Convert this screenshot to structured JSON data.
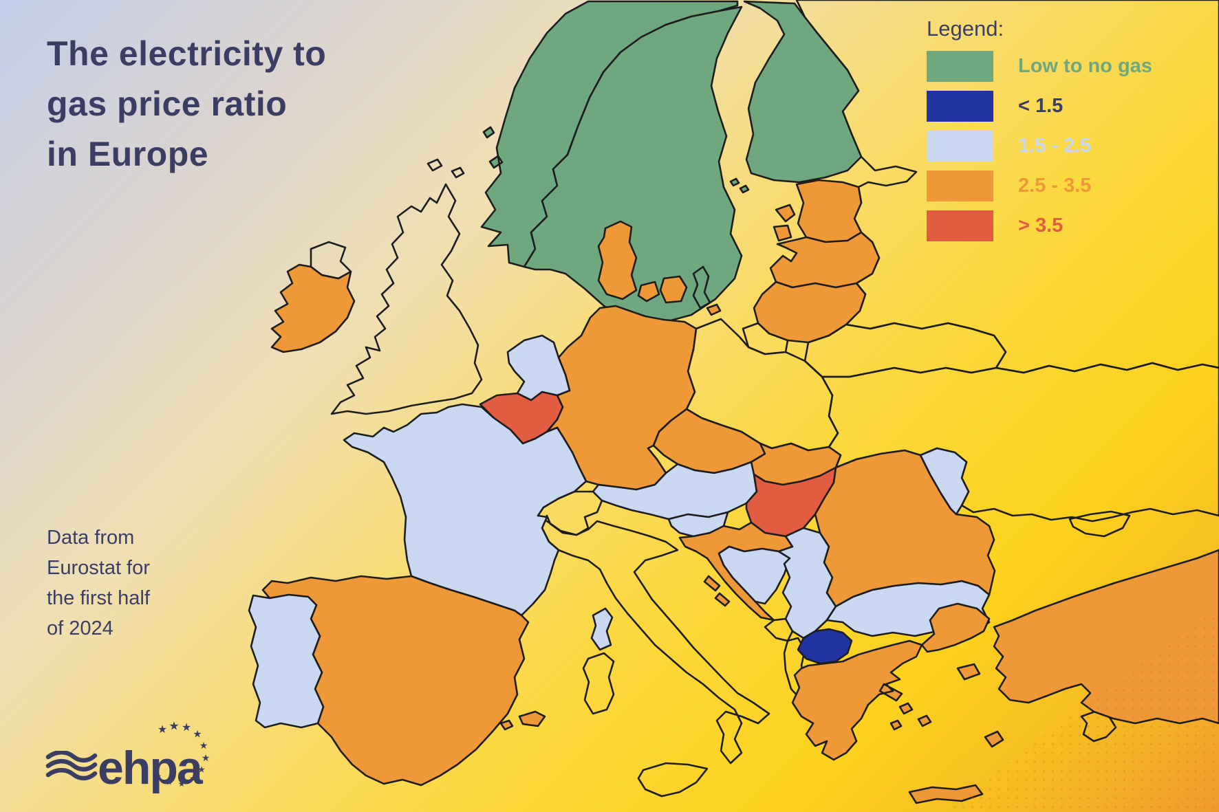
{
  "title": {
    "lines": [
      "The electricity to",
      "gas price ratio",
      "in Europe"
    ]
  },
  "legend": {
    "heading": "Legend:",
    "items": [
      {
        "label": "Low to no gas",
        "category": "low_to_no_gas",
        "swatch_color": "#6FA87E",
        "label_color": "#6FA87E"
      },
      {
        "label": "< 1.5",
        "category": "below_1_5",
        "swatch_color": "#2134A0",
        "label_color": "#3B3D63"
      },
      {
        "label": "1.5 - 2.5",
        "category": "1_5_to_2_5",
        "swatch_color": "#C9D8F0",
        "label_color": "#C9D8F0"
      },
      {
        "label": "2.5 - 3.5",
        "category": "2_5_to_3_5",
        "swatch_color": "#EF9838",
        "label_color": "#EF9838"
      },
      {
        "label": "> 3.5",
        "category": "above_3_5",
        "swatch_color": "#E15C40",
        "label_color": "#E15C40"
      }
    ]
  },
  "source_note": {
    "lines": [
      "Data from",
      "Eurostat for",
      "the first half",
      "of 2024"
    ]
  },
  "logo": {
    "text": "ehpa"
  },
  "map": {
    "border_color": "#1d1d1d",
    "categories": {
      "low_to_no_gas": "#6FA87E",
      "below_1_5": "#2134A0",
      "1_5_to_2_5": "#C9D8F0",
      "2_5_to_3_5": "#EF9838",
      "above_3_5": "#E15C40",
      "no_data": "none"
    },
    "countries": [
      {
        "name": "Russia",
        "category": "no_data"
      },
      {
        "name": "Ukraine",
        "category": "no_data"
      },
      {
        "name": "Belarus",
        "category": "no_data"
      },
      {
        "name": "Poland",
        "category": "no_data"
      },
      {
        "name": "United Kingdom",
        "category": "no_data"
      },
      {
        "name": "Switzerland",
        "category": "no_data"
      },
      {
        "name": "Italy",
        "category": "no_data"
      },
      {
        "name": "Montenegro",
        "category": "no_data"
      },
      {
        "name": "Albania",
        "category": "no_data"
      },
      {
        "name": "Cyprus",
        "category": "no_data"
      },
      {
        "name": "Norway",
        "category": "low_to_no_gas"
      },
      {
        "name": "Sweden",
        "category": "low_to_no_gas"
      },
      {
        "name": "Finland",
        "category": "low_to_no_gas"
      },
      {
        "name": "Denmark",
        "category": "2_5_to_3_5"
      },
      {
        "name": "Estonia",
        "category": "2_5_to_3_5"
      },
      {
        "name": "Latvia",
        "category": "2_5_to_3_5"
      },
      {
        "name": "Lithuania",
        "category": "2_5_to_3_5"
      },
      {
        "name": "Germany",
        "category": "2_5_to_3_5"
      },
      {
        "name": "Netherlands",
        "category": "1_5_to_2_5"
      },
      {
        "name": "Ireland",
        "category": "2_5_to_3_5"
      },
      {
        "name": "Northern Ireland (UK)",
        "category": "no_data"
      },
      {
        "name": "Belgium",
        "category": "above_3_5"
      },
      {
        "name": "Luxembourg",
        "category": "2_5_to_3_5"
      },
      {
        "name": "Czechia",
        "category": "2_5_to_3_5"
      },
      {
        "name": "Slovakia",
        "category": "2_5_to_3_5"
      },
      {
        "name": "Austria",
        "category": "1_5_to_2_5"
      },
      {
        "name": "Hungary",
        "category": "above_3_5"
      },
      {
        "name": "Slovenia",
        "category": "1_5_to_2_5"
      },
      {
        "name": "Croatia",
        "category": "2_5_to_3_5"
      },
      {
        "name": "Bosnia and Herzegovina",
        "category": "1_5_to_2_5"
      },
      {
        "name": "Serbia",
        "category": "1_5_to_2_5"
      },
      {
        "name": "North Macedonia",
        "category": "below_1_5"
      },
      {
        "name": "Bulgaria",
        "category": "1_5_to_2_5"
      },
      {
        "name": "Romania",
        "category": "2_5_to_3_5"
      },
      {
        "name": "Moldova",
        "category": "1_5_to_2_5"
      },
      {
        "name": "Greece",
        "category": "2_5_to_3_5"
      },
      {
        "name": "Turkey",
        "category": "2_5_to_3_5"
      },
      {
        "name": "France",
        "category": "1_5_to_2_5"
      },
      {
        "name": "Spain",
        "category": "2_5_to_3_5"
      },
      {
        "name": "Portugal",
        "category": "1_5_to_2_5"
      }
    ]
  }
}
